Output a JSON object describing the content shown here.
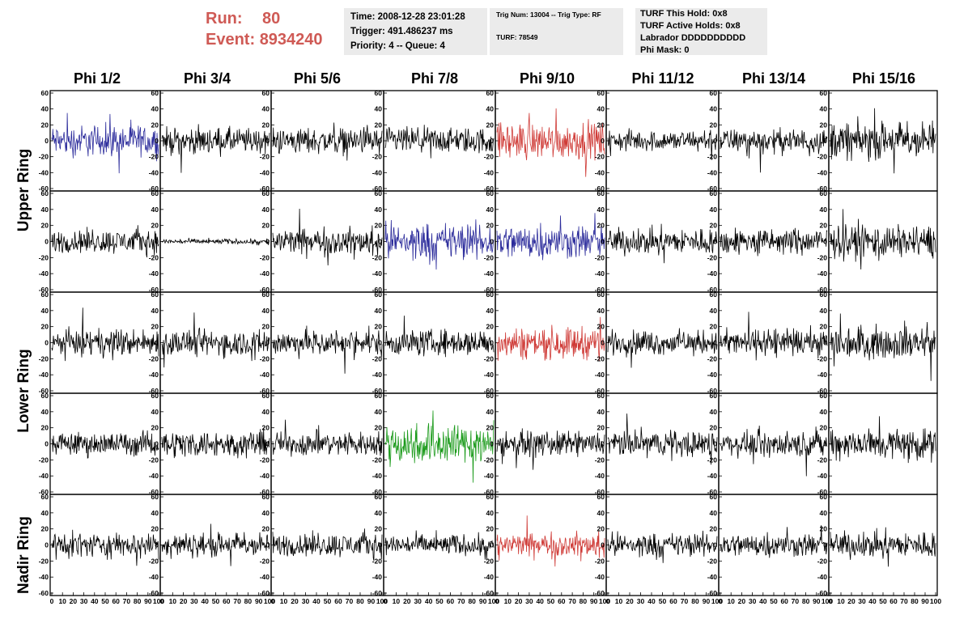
{
  "header": {
    "run_label": "Run:",
    "run_value": "80",
    "event_label": "Event:",
    "event_value": "8934240"
  },
  "info_time": {
    "time": "Time: 2008-12-28 23:01:28",
    "trigger": "Trigger: 491.486237 ms",
    "priority": "Priority: 4 -- Queue: 4"
  },
  "info_trig": {
    "trig_line": "Trig Num: 13004 -- Trig Type: RF",
    "turf_line": "TURF: 78549"
  },
  "info_turf": {
    "hold": "TURF This Hold: 0x8",
    "active": "TURF Active Holds: 0x8",
    "labrador": "Labrador DDDDDDDDDD",
    "phimask": "Phi Mask: 0"
  },
  "phi_titles": [
    "Phi 1/2",
    "Phi 3/4",
    "Phi 5/6",
    "Phi 7/8",
    "Phi 9/10",
    "Phi 11/12",
    "Phi 13/14",
    "Phi 15/16"
  ],
  "ring_labels": {
    "upper": "Upper Ring",
    "lower": "Lower Ring",
    "nadir": "Nadir Ring"
  },
  "axis": {
    "y_ticks": [
      "60",
      "40",
      "20",
      "0",
      "-20",
      "-40",
      "-60"
    ],
    "x_ticks": [
      "0",
      "10",
      "20",
      "30",
      "40",
      "50",
      "60",
      "70",
      "80",
      "90",
      "100"
    ],
    "ylim": [
      -60,
      60
    ],
    "xlim": [
      0,
      100
    ]
  },
  "colors": {
    "red": "#cf3a36",
    "blue": "#2b2b9b",
    "green": "#1a9a1a",
    "black": "#000000",
    "header_red": "#cf5a55",
    "panel_bg": "#ebebeb"
  },
  "trace_colors": [
    [
      "blue",
      "black",
      "black",
      "black",
      "red",
      "black",
      "black",
      "black"
    ],
    [
      "black",
      "black",
      "black",
      "blue",
      "blue",
      "black",
      "black",
      "black"
    ],
    [
      "black",
      "black",
      "black",
      "black",
      "red",
      "black",
      "black",
      "black"
    ],
    [
      "black",
      "black",
      "black",
      "green",
      "black",
      "black",
      "black",
      "black"
    ],
    [
      "black",
      "black",
      "black",
      "black",
      "red",
      "black",
      "black",
      "black"
    ]
  ],
  "trace_amplitude": [
    [
      12,
      10,
      10,
      10,
      14,
      8,
      9,
      14
    ],
    [
      9,
      2,
      10,
      14,
      13,
      10,
      10,
      12
    ],
    [
      10,
      10,
      10,
      10,
      12,
      9,
      10,
      12
    ],
    [
      9,
      10,
      9,
      16,
      9,
      10,
      9,
      12
    ],
    [
      9,
      9,
      9,
      8,
      9,
      9,
      9,
      10
    ]
  ]
}
